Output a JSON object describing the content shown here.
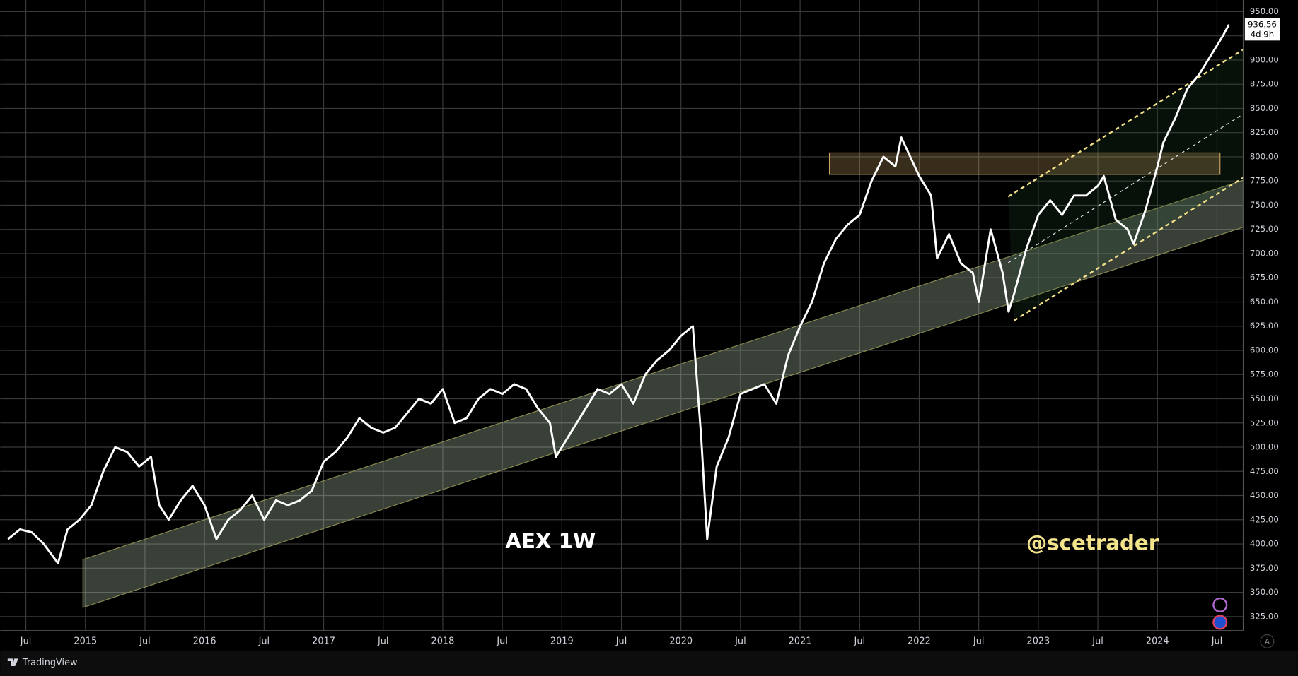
{
  "chart_data": {
    "type": "line",
    "color": "#ffffff",
    "grid": true,
    "annotations": [
      "AEX 1W",
      "@scetrader"
    ],
    "last_value_label": "936.56",
    "countdown": "4d 9h",
    "brand": "TradingView",
    "auto_scale_button": "A",
    "xlim": [
      2014.34,
      2024.72
    ],
    "ylim": [
      310.5,
      962
    ],
    "xticks": [
      {
        "value": 2014.5,
        "label": "Jul"
      },
      {
        "value": 2015,
        "label": "2015"
      },
      {
        "value": 2015.5,
        "label": "Jul"
      },
      {
        "value": 2016,
        "label": "2016"
      },
      {
        "value": 2016.5,
        "label": "Jul"
      },
      {
        "value": 2017,
        "label": "2017"
      },
      {
        "value": 2017.5,
        "label": "Jul"
      },
      {
        "value": 2018,
        "label": "2018"
      },
      {
        "value": 2018.5,
        "label": "Jul"
      },
      {
        "value": 2019,
        "label": "2019"
      },
      {
        "value": 2019.5,
        "label": "Jul"
      },
      {
        "value": 2020,
        "label": "2020"
      },
      {
        "value": 2020.5,
        "label": "Jul"
      },
      {
        "value": 2021,
        "label": "2021"
      },
      {
        "value": 2021.5,
        "label": "Jul"
      },
      {
        "value": 2022,
        "label": "2022"
      },
      {
        "value": 2022.5,
        "label": "Jul"
      },
      {
        "value": 2023,
        "label": "2023"
      },
      {
        "value": 2023.5,
        "label": "Jul"
      },
      {
        "value": 2024,
        "label": "2024"
      },
      {
        "value": 2024.5,
        "label": "Jul"
      }
    ],
    "yticks": [
      {
        "value": 325,
        "label": "325.00"
      },
      {
        "value": 350,
        "label": "350.00"
      },
      {
        "value": 375,
        "label": "375.00"
      },
      {
        "value": 400,
        "label": "400.00"
      },
      {
        "value": 425,
        "label": "425.00"
      },
      {
        "value": 450,
        "label": "450.00"
      },
      {
        "value": 475,
        "label": "475.00"
      },
      {
        "value": 500,
        "label": "500.00"
      },
      {
        "value": 525,
        "label": "525.00"
      },
      {
        "value": 550,
        "label": "550.00"
      },
      {
        "value": 575,
        "label": "575.00"
      },
      {
        "value": 600,
        "label": "600.00"
      },
      {
        "value": 625,
        "label": "625.00"
      },
      {
        "value": 650,
        "label": "650.00"
      },
      {
        "value": 675,
        "label": "675.00"
      },
      {
        "value": 700,
        "label": "700.00"
      },
      {
        "value": 725,
        "label": "725.00"
      },
      {
        "value": 750,
        "label": "750.00"
      },
      {
        "value": 775,
        "label": "775.00"
      },
      {
        "value": 800,
        "label": "800.00"
      },
      {
        "value": 825,
        "label": "825.00"
      },
      {
        "value": 850,
        "label": "850.00"
      },
      {
        "value": 875,
        "label": "875.00"
      },
      {
        "value": 900,
        "label": "900.00"
      },
      {
        "value": 925,
        "label": "925.00"
      },
      {
        "value": 950,
        "label": "950.00"
      }
    ],
    "x": [
      2014.35,
      2014.45,
      2014.55,
      2014.65,
      2014.77,
      2014.85,
      2014.95,
      2015.05,
      2015.15,
      2015.25,
      2015.35,
      2015.45,
      2015.55,
      2015.62,
      2015.7,
      2015.8,
      2015.9,
      2016.0,
      2016.1,
      2016.2,
      2016.3,
      2016.4,
      2016.5,
      2016.6,
      2016.7,
      2016.8,
      2016.9,
      2017.0,
      2017.1,
      2017.2,
      2017.3,
      2017.4,
      2017.5,
      2017.6,
      2017.7,
      2017.8,
      2017.9,
      2018.0,
      2018.1,
      2018.2,
      2018.3,
      2018.4,
      2018.5,
      2018.6,
      2018.7,
      2018.8,
      2018.9,
      2018.95,
      2019.0,
      2019.1,
      2019.2,
      2019.3,
      2019.4,
      2019.5,
      2019.6,
      2019.7,
      2019.8,
      2019.9,
      2020.0,
      2020.1,
      2020.17,
      2020.22,
      2020.3,
      2020.4,
      2020.5,
      2020.6,
      2020.7,
      2020.8,
      2020.9,
      2021.0,
      2021.1,
      2021.2,
      2021.3,
      2021.4,
      2021.5,
      2021.6,
      2021.7,
      2021.8,
      2021.85,
      2022.0,
      2022.1,
      2022.15,
      2022.25,
      2022.35,
      2022.45,
      2022.5,
      2022.6,
      2022.7,
      2022.75,
      2022.8,
      2022.9,
      2023.0,
      2023.1,
      2023.2,
      2023.3,
      2023.4,
      2023.5,
      2023.55,
      2023.65,
      2023.75,
      2023.8,
      2023.9,
      2024.0,
      2024.05,
      2024.15,
      2024.25,
      2024.35,
      2024.45,
      2024.55,
      2024.6
    ],
    "values": [
      405,
      415,
      412,
      400,
      380,
      415,
      425,
      440,
      475,
      500,
      495,
      480,
      490,
      440,
      425,
      445,
      460,
      440,
      405,
      425,
      435,
      450,
      425,
      445,
      440,
      445,
      455,
      485,
      495,
      510,
      530,
      520,
      515,
      520,
      535,
      550,
      545,
      560,
      525,
      530,
      550,
      560,
      555,
      565,
      560,
      540,
      525,
      490,
      500,
      520,
      540,
      560,
      555,
      565,
      545,
      575,
      590,
      600,
      615,
      625,
      510,
      405,
      480,
      510,
      555,
      560,
      565,
      545,
      595,
      625,
      650,
      690,
      715,
      730,
      740,
      775,
      800,
      790,
      820,
      780,
      760,
      695,
      720,
      690,
      680,
      650,
      725,
      680,
      640,
      660,
      705,
      740,
      755,
      740,
      760,
      760,
      770,
      780,
      735,
      725,
      710,
      745,
      790,
      815,
      840,
      870,
      885,
      905,
      925,
      936.56
    ]
  }
}
